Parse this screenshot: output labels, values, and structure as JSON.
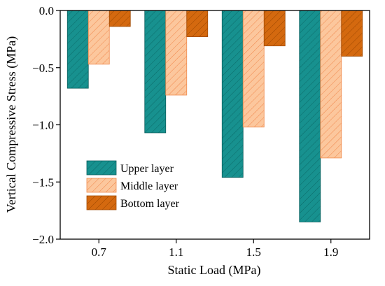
{
  "chart_data": {
    "type": "bar",
    "title": "",
    "xlabel": "Static Load (MPa)",
    "ylabel": "Vertical Compressive Stress (MPa)",
    "categories": [
      "0.7",
      "1.1",
      "1.5",
      "1.9"
    ],
    "ylim": [
      -2.0,
      0.0
    ],
    "yticks": [
      "0.0",
      "-0.5",
      "-1.0",
      "-1.5",
      "-2.0"
    ],
    "ytick_values": [
      0.0,
      -0.5,
      -1.0,
      -1.5,
      -2.0
    ],
    "grid": false,
    "legend_position": "lower-left",
    "series": [
      {
        "name": "Upper layer",
        "values": [
          -0.68,
          -1.07,
          -1.46,
          -1.85
        ],
        "fill": "#17918f",
        "stroke": "#0b5e5d",
        "hatch": "#0b6a68"
      },
      {
        "name": "Middle layer",
        "values": [
          -0.47,
          -0.74,
          -1.02,
          -1.29
        ],
        "fill": "#fcc79d",
        "stroke": "#f08a4c",
        "hatch": "#f0864a"
      },
      {
        "name": "Bottom layer",
        "values": [
          -0.14,
          -0.23,
          -0.31,
          -0.4
        ],
        "fill": "#d4690f",
        "stroke": "#a24c05",
        "hatch": "#9c4700"
      }
    ]
  }
}
